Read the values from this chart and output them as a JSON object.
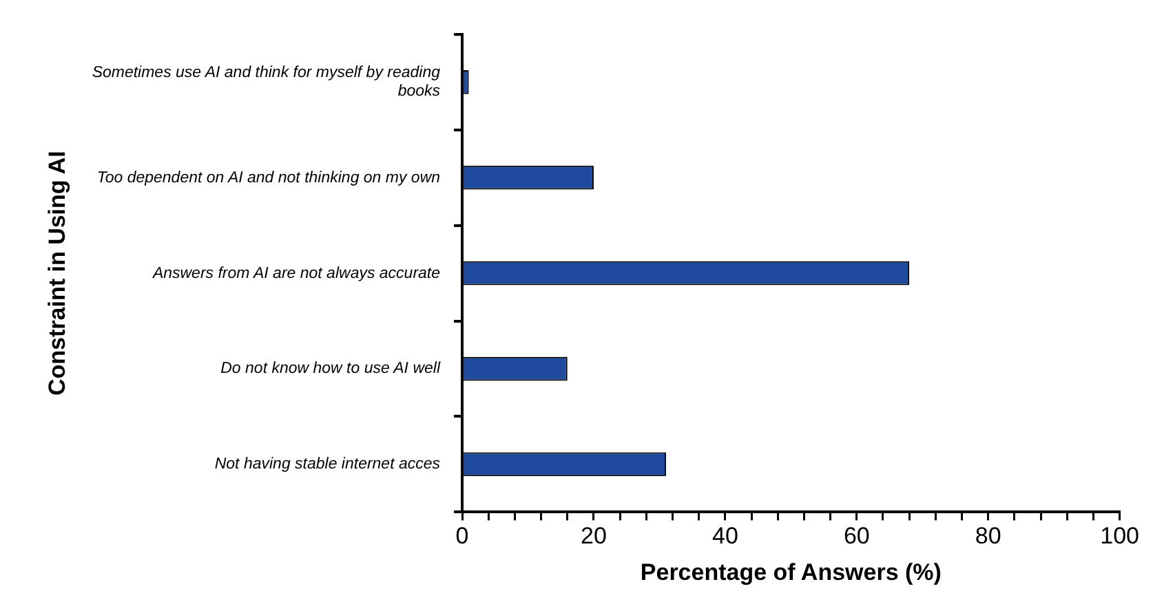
{
  "chart_data": {
    "type": "bar",
    "orientation": "horizontal",
    "xlabel": "Percentage of Answers (%)",
    "ylabel": "Constraint in Using AI",
    "categories": [
      "Sometimes use AI and think for myself by reading books",
      "Too dependent on AI and not thinking on my own",
      "Answers from AI are not always accurate",
      "Do not know how to use AI well",
      "Not having stable internet acces"
    ],
    "values": [
      1,
      20,
      68,
      16,
      31
    ],
    "color": "#1f4a9e",
    "xlim": [
      0,
      100
    ],
    "xticks": [
      0,
      {
        "value": 4,
        "label": null
      },
      {
        "value": 8,
        "label": null
      },
      {
        "value": 12,
        "label": null
      },
      {
        "value": 16,
        "label": null
      },
      20,
      {
        "value": 24,
        "label": null
      },
      {
        "value": 28,
        "label": null
      },
      {
        "value": 32,
        "label": null
      },
      {
        "value": 36,
        "label": null
      },
      40,
      {
        "value": 44,
        "label": null
      },
      {
        "value": 48,
        "label": null
      },
      {
        "value": 52,
        "label": null
      },
      {
        "value": 56,
        "label": null
      },
      60,
      {
        "value": 64,
        "label": null
      },
      {
        "value": 68,
        "label": null
      },
      {
        "value": 72,
        "label": null
      },
      {
        "value": 76,
        "label": null
      },
      80,
      {
        "value": 84,
        "label": null
      },
      {
        "value": 88,
        "label": null
      },
      {
        "value": 92,
        "label": null
      },
      {
        "value": 96,
        "label": null
      },
      100
    ],
    "grid": false,
    "legend": false
  }
}
